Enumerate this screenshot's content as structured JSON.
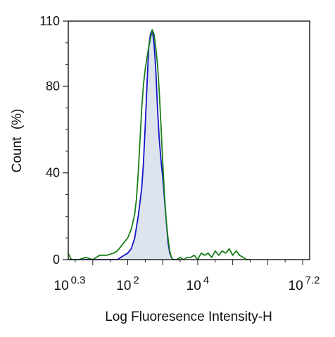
{
  "chart_data": {
    "type": "line",
    "title": "",
    "xlabel": "Log Fluoresence Intensity-H",
    "ylabel": "Count  (%)",
    "x_scale": "log10",
    "xlim": [
      0.3,
      7.2
    ],
    "ylim": [
      0,
      110
    ],
    "grid": false,
    "legend": "none",
    "x_ticks": [
      {
        "base": "10",
        "exp": "0.3",
        "value": 0.3
      },
      {
        "base": "10",
        "exp": "2",
        "value": 2
      },
      {
        "base": "10",
        "exp": "4",
        "value": 4
      },
      {
        "base": "10",
        "exp": "7.2",
        "value": 7.2
      }
    ],
    "y_ticks": [
      {
        "label": "0",
        "value": 0
      },
      {
        "label": "40",
        "value": 40
      },
      {
        "label": "80",
        "value": 80
      },
      {
        "label": "110",
        "value": 110
      }
    ],
    "series": [
      {
        "color": "#1a7f1a",
        "fill": "none",
        "x": [
          0.3,
          0.35,
          0.4,
          0.5,
          0.6,
          0.8,
          1.0,
          1.2,
          1.4,
          1.6,
          1.7,
          1.8,
          1.9,
          2.0,
          2.1,
          2.2,
          2.25,
          2.3,
          2.35,
          2.4,
          2.45,
          2.5,
          2.55,
          2.6,
          2.65,
          2.7,
          2.75,
          2.8,
          2.85,
          2.9,
          2.95,
          3.0,
          3.05,
          3.1,
          3.15,
          3.2,
          3.25,
          3.3,
          3.4,
          3.5,
          3.6,
          3.7,
          3.8,
          3.9,
          4.0,
          4.1,
          4.2,
          4.3,
          4.4,
          4.5,
          4.6,
          4.7,
          4.8,
          4.9,
          5.0,
          5.1,
          5.2,
          5.3,
          5.4,
          5.5
        ],
        "y": [
          3,
          1,
          0,
          0,
          0,
          1,
          0,
          2,
          2,
          3,
          4,
          6,
          8,
          10,
          14,
          21,
          28,
          40,
          55,
          70,
          81,
          88,
          93,
          98,
          102,
          106,
          104,
          98,
          90,
          78,
          62,
          45,
          30,
          18,
          10,
          4,
          1,
          0,
          0,
          1,
          0,
          1,
          1,
          2,
          0,
          3,
          2,
          3,
          1,
          4,
          2,
          4,
          3,
          5,
          2,
          4,
          2,
          1,
          0,
          0
        ]
      },
      {
        "color": "#1414c8",
        "fill": "#dde4ee",
        "x": [
          0.3,
          0.5,
          1.0,
          1.4,
          1.6,
          1.7,
          1.8,
          1.9,
          2.0,
          2.1,
          2.2,
          2.3,
          2.4,
          2.45,
          2.5,
          2.55,
          2.6,
          2.65,
          2.7,
          2.75,
          2.8,
          2.85,
          2.9,
          2.95,
          3.0,
          3.05,
          3.1,
          3.15,
          3.2,
          3.25,
          3.3,
          3.4,
          3.5
        ],
        "y": [
          0,
          0,
          0,
          0,
          0,
          0,
          1,
          2,
          3,
          5,
          10,
          20,
          33,
          45,
          62,
          80,
          98,
          104,
          106,
          100,
          88,
          70,
          56,
          46,
          38,
          28,
          18,
          8,
          3,
          1,
          0,
          0,
          0
        ]
      }
    ]
  }
}
